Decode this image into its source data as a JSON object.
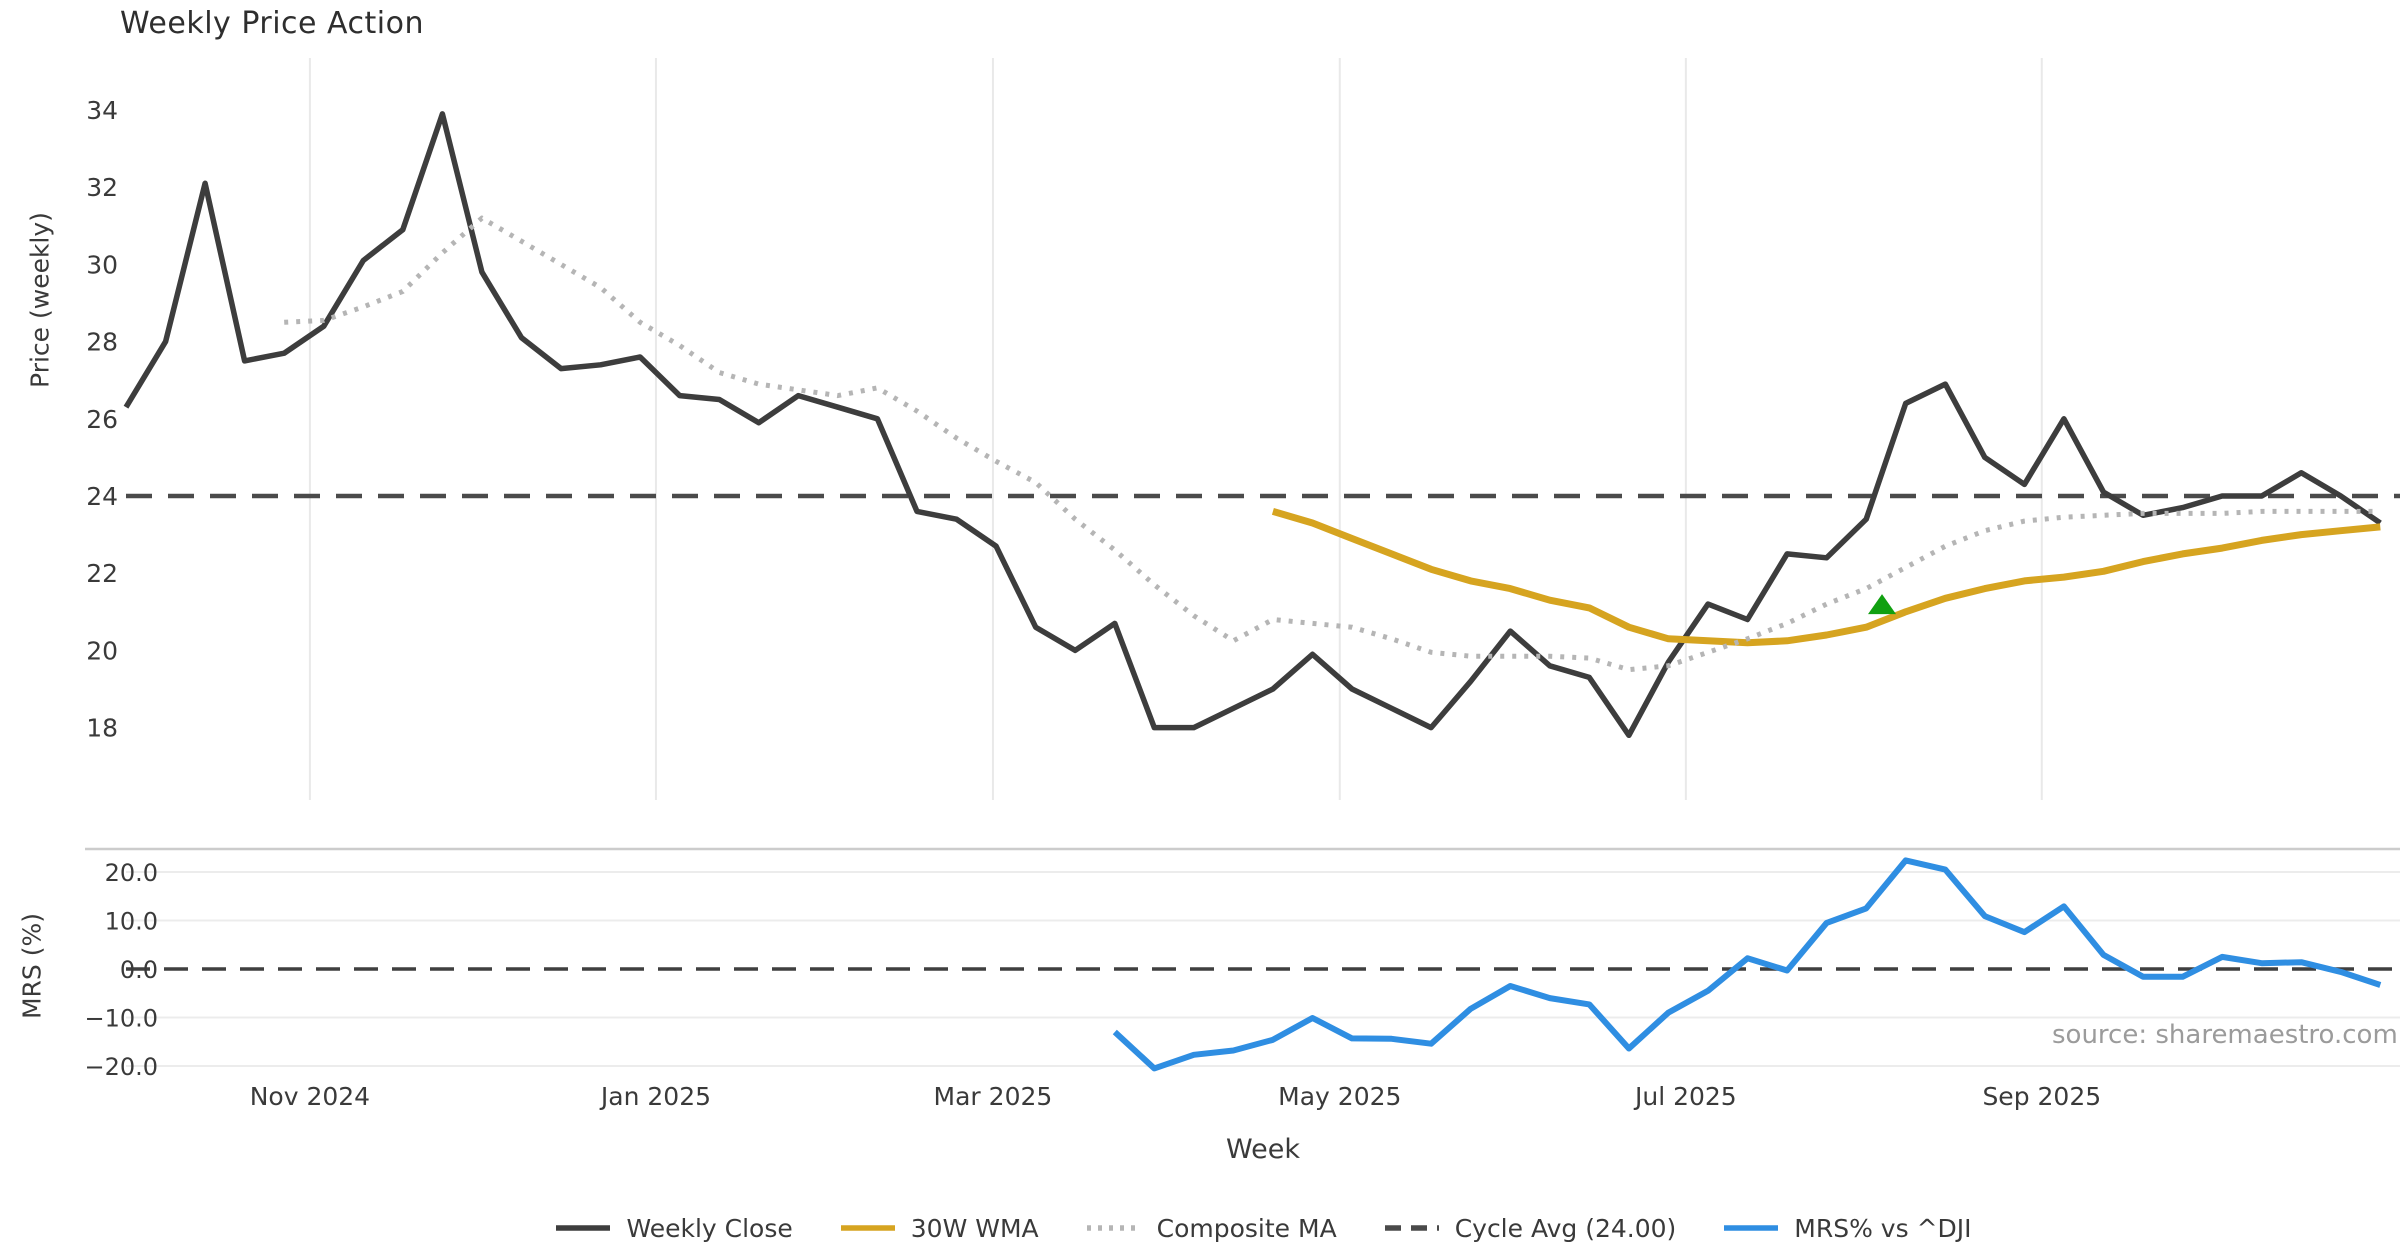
{
  "page": {
    "title": "Weekly Price Action",
    "source_note": "source: sharemaestro.com"
  },
  "x_axis": {
    "label": "Week",
    "month_ticks": [
      {
        "label": "Nov 2024",
        "week_pos": 4.65
      },
      {
        "label": "Jan 2025",
        "week_pos": 13.4
      },
      {
        "label": "Mar 2025",
        "week_pos": 21.92
      },
      {
        "label": "May 2025",
        "week_pos": 30.69
      },
      {
        "label": "Jul 2025",
        "week_pos": 39.44
      },
      {
        "label": "Sep 2025",
        "week_pos": 48.44
      }
    ]
  },
  "legend": {
    "items": [
      {
        "label": "Weekly Close",
        "color": "#3d3d3d",
        "style": "solid"
      },
      {
        "label": "30W WMA",
        "color": "#d6a420",
        "style": "solid"
      },
      {
        "label": "Composite MA",
        "color": "#b5b5b5",
        "style": "dotted"
      },
      {
        "label": "Cycle Avg (24.00)",
        "color": "#4a4a4a",
        "style": "dashed"
      },
      {
        "label": "MRS% vs ^DJI",
        "color": "#2f8ee2",
        "style": "solid"
      }
    ]
  },
  "chart_data": [
    {
      "panel": "price",
      "type": "line",
      "ylabel": "Price (weekly)",
      "ylim": [
        16.1,
        35.3
      ],
      "yticks": [
        34,
        32,
        30,
        28,
        26,
        24,
        22,
        20,
        18
      ],
      "grid": "vertical-months-only",
      "cycle_avg": 24.0,
      "buy_marker": {
        "week": 44.4,
        "price": 21.2,
        "shape": "triangle-up",
        "color": "#10a010"
      },
      "series": [
        {
          "name": "Weekly Close",
          "color": "#3d3d3d",
          "style": "solid",
          "width": 5.5,
          "values": [
            26.3,
            28.0,
            32.1,
            27.5,
            27.7,
            28.4,
            30.1,
            30.9,
            33.9,
            29.8,
            28.1,
            27.3,
            27.4,
            27.6,
            26.6,
            26.5,
            25.9,
            26.6,
            26.3,
            26.0,
            23.6,
            23.4,
            22.7,
            20.6,
            20.0,
            20.7,
            18.0,
            18.0,
            18.5,
            19.0,
            19.9,
            19.0,
            18.5,
            18.0,
            19.2,
            20.5,
            19.6,
            19.3,
            17.8,
            19.7,
            21.2,
            20.8,
            22.5,
            22.4,
            23.4,
            26.4,
            26.9,
            25.0,
            24.3,
            26.0,
            24.1,
            23.5,
            23.7,
            24.0,
            24.0,
            24.6,
            24.0,
            23.3
          ]
        },
        {
          "name": "30W WMA",
          "color": "#d6a420",
          "style": "solid",
          "width": 7,
          "values": [
            null,
            null,
            null,
            null,
            null,
            null,
            null,
            null,
            null,
            null,
            null,
            null,
            null,
            null,
            null,
            null,
            null,
            null,
            null,
            null,
            null,
            null,
            null,
            null,
            null,
            null,
            null,
            null,
            null,
            23.6,
            23.3,
            22.9,
            22.5,
            22.1,
            21.8,
            21.6,
            21.3,
            21.1,
            20.6,
            20.3,
            20.25,
            20.2,
            20.25,
            20.4,
            20.6,
            21.0,
            21.35,
            21.6,
            21.8,
            21.9,
            22.05,
            22.3,
            22.5,
            22.65,
            22.85,
            23.0,
            23.1,
            23.2
          ]
        },
        {
          "name": "Composite MA",
          "color": "#b5b5b5",
          "style": "dotted",
          "width": 5,
          "values": [
            null,
            null,
            null,
            null,
            28.5,
            28.55,
            28.9,
            29.3,
            30.3,
            31.2,
            30.6,
            30.0,
            29.4,
            28.5,
            27.9,
            27.2,
            26.9,
            26.75,
            26.6,
            26.8,
            26.2,
            25.5,
            24.9,
            24.35,
            23.4,
            22.6,
            21.7,
            20.9,
            20.25,
            20.8,
            20.7,
            20.6,
            20.3,
            19.95,
            19.85,
            19.85,
            19.85,
            19.8,
            19.5,
            19.6,
            19.95,
            20.3,
            20.7,
            21.2,
            21.6,
            22.15,
            22.7,
            23.1,
            23.35,
            23.45,
            23.5,
            23.55,
            23.55,
            23.55,
            23.6,
            23.6,
            23.6,
            23.6
          ]
        }
      ]
    },
    {
      "panel": "mrs",
      "type": "line",
      "ylabel": "MRS (%)",
      "ylim": [
        -24,
        25
      ],
      "yticks": [
        "20.0",
        "10.0",
        "0.0",
        "−10.0",
        "−20.0"
      ],
      "ytick_values": [
        20,
        10,
        0,
        -10,
        -20
      ],
      "zero_line": 0.0,
      "grid": "horizontal",
      "series": [
        {
          "name": "MRS% vs ^DJI",
          "color": "#2f8ee2",
          "style": "solid",
          "width": 6,
          "values": [
            null,
            null,
            null,
            null,
            null,
            null,
            null,
            null,
            null,
            null,
            null,
            null,
            null,
            null,
            null,
            null,
            null,
            null,
            null,
            null,
            null,
            null,
            null,
            null,
            null,
            -13.0,
            -20.5,
            -17.7,
            -16.8,
            -14.6,
            -10.1,
            -14.3,
            -14.4,
            -15.4,
            -8.2,
            -3.5,
            -6.0,
            -7.3,
            -16.4,
            -9.0,
            -4.5,
            2.2,
            -0.3,
            9.5,
            12.5,
            22.4,
            20.5,
            10.9,
            7.6,
            12.9,
            2.9,
            -1.6,
            -1.6,
            2.5,
            1.2,
            1.4,
            -0.6,
            -3.3
          ]
        }
      ]
    }
  ]
}
